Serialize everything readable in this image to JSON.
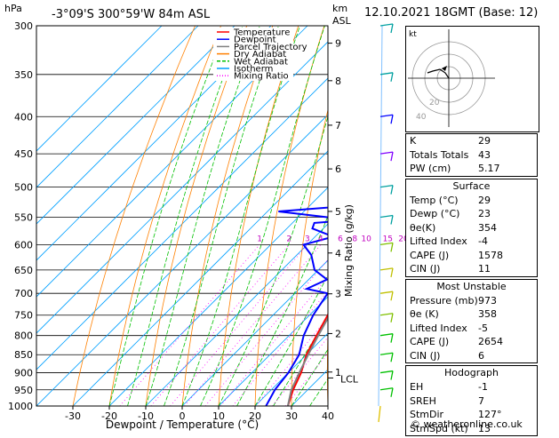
{
  "header": {
    "hpa_label": "hPa",
    "location": "-3°09'S  300°59'W  84m  ASL",
    "km_label": "km",
    "asl_label": "ASL",
    "datetime": "12.10.2021  18GMT  (Base: 12)"
  },
  "legend": [
    {
      "label": "Temperature",
      "color": "#ff0000"
    },
    {
      "label": "Dewpoint",
      "color": "#0000ff"
    },
    {
      "label": "Parcel Trajectory",
      "color": "#808080"
    },
    {
      "label": "Dry Adiabat",
      "color": "#ff8000"
    },
    {
      "label": "Wet Adiabat",
      "color": "#00c000"
    },
    {
      "label": "Isotherm",
      "color": "#00a0ff"
    },
    {
      "label": "Mixing Ratio",
      "color": "#ff00ff"
    }
  ],
  "chart_data": {
    "type": "line",
    "title": "",
    "xlabel": "Dewpoint / Temperature (°C)",
    "ylabel": "hPa",
    "right_axis_label": "Mixing Ratio (g/kg)",
    "xlim": [
      -40,
      40
    ],
    "ylim": [
      1000,
      300
    ],
    "x_ticks": [
      "-30",
      "-20",
      "-10",
      "0",
      "10",
      "20",
      "30",
      "40"
    ],
    "pressure_levels": [
      300,
      350,
      400,
      450,
      500,
      550,
      600,
      650,
      700,
      750,
      800,
      850,
      900,
      950,
      1000
    ],
    "km_ticks": [
      {
        "label": "9",
        "p": 317
      },
      {
        "label": "8",
        "p": 357
      },
      {
        "label": "7",
        "p": 411
      },
      {
        "label": "6",
        "p": 472
      },
      {
        "label": "5",
        "p": 540
      },
      {
        "label": "4",
        "p": 616
      },
      {
        "label": "3",
        "p": 701
      },
      {
        "label": "2",
        "p": 795
      },
      {
        "label": "1",
        "p": 898
      }
    ],
    "lcl_label": "LCL",
    "lcl_p": 915,
    "mixing_ratio_labels": [
      "1",
      "2",
      "3",
      "4",
      "6",
      "8",
      "10",
      "15",
      "20",
      "25"
    ],
    "mixing_ratio_values": [
      1,
      2,
      3,
      4,
      6,
      8,
      10,
      15,
      20,
      25
    ],
    "series": [
      {
        "name": "Temperature",
        "color": "#ff0000",
        "points": [
          [
            1000,
            29
          ],
          [
            950,
            26
          ],
          [
            900,
            23.5
          ],
          [
            850,
            20
          ],
          [
            800,
            17.5
          ],
          [
            750,
            15
          ],
          [
            700,
            12
          ],
          [
            650,
            9
          ],
          [
            600,
            5
          ],
          [
            550,
            1
          ],
          [
            500,
            -4
          ],
          [
            450,
            -10
          ],
          [
            430,
            -12
          ],
          [
            410,
            -16
          ],
          [
            400,
            -17
          ],
          [
            350,
            -24
          ],
          [
            330,
            -30
          ],
          [
            300,
            -37
          ]
        ]
      },
      {
        "name": "Dewpoint",
        "color": "#0000ff",
        "points": [
          [
            1000,
            23
          ],
          [
            950,
            21
          ],
          [
            900,
            20
          ],
          [
            850,
            18
          ],
          [
            800,
            14
          ],
          [
            750,
            11
          ],
          [
            700,
            9
          ],
          [
            690,
            2
          ],
          [
            670,
            5
          ],
          [
            650,
            -1
          ],
          [
            620,
            -6
          ],
          [
            600,
            -11
          ],
          [
            585,
            -5
          ],
          [
            570,
            -13
          ],
          [
            560,
            -14
          ],
          [
            555,
            -4
          ],
          [
            550,
            -12
          ],
          [
            540,
            -27
          ],
          [
            530,
            -8
          ],
          [
            500,
            -13
          ],
          [
            450,
            -18
          ],
          [
            430,
            -24
          ],
          [
            410,
            -20
          ],
          [
            400,
            -25
          ],
          [
            370,
            -33
          ],
          [
            350,
            -38
          ],
          [
            320,
            -40
          ],
          [
            300,
            -43
          ]
        ]
      },
      {
        "name": "Parcel Trajectory",
        "color": "#808080",
        "points": [
          [
            1000,
            29
          ],
          [
            950,
            25.5
          ],
          [
            900,
            23
          ],
          [
            850,
            20.5
          ],
          [
            800,
            18
          ],
          [
            750,
            15.5
          ],
          [
            700,
            13
          ],
          [
            650,
            10
          ],
          [
            600,
            6.5
          ],
          [
            550,
            3
          ],
          [
            500,
            -2
          ],
          [
            450,
            -7.5
          ],
          [
            400,
            -14
          ],
          [
            350,
            -22
          ],
          [
            300,
            -31
          ]
        ]
      }
    ]
  },
  "hodograph": {
    "label": "kt",
    "rings": [
      "20",
      "40"
    ]
  },
  "indices": [
    {
      "label": "K",
      "value": "29"
    },
    {
      "label": "Totals Totals",
      "value": "43"
    },
    {
      "label": "PW (cm)",
      "value": "5.17"
    }
  ],
  "surface": {
    "title": "Surface",
    "rows": [
      {
        "label": "Temp (°C)",
        "value": "29"
      },
      {
        "label": "Dewp (°C)",
        "value": "23"
      },
      {
        "label": "θe(K)",
        "value": "354"
      },
      {
        "label": "Lifted Index",
        "value": "-4"
      },
      {
        "label": "CAPE (J)",
        "value": "1578"
      },
      {
        "label": "CIN (J)",
        "value": "11"
      }
    ]
  },
  "most_unstable": {
    "title": "Most Unstable",
    "rows": [
      {
        "label": "Pressure (mb)",
        "value": "973"
      },
      {
        "label": "θe (K)",
        "value": "358"
      },
      {
        "label": "Lifted Index",
        "value": "-5"
      },
      {
        "label": "CAPE (J)",
        "value": "2654"
      },
      {
        "label": "CIN (J)",
        "value": "6"
      }
    ]
  },
  "hodograph_table": {
    "title": "Hodograph",
    "rows": [
      {
        "label": "EH",
        "value": "-1"
      },
      {
        "label": "SREH",
        "value": "7"
      },
      {
        "label": "StmDir",
        "value": "127°"
      },
      {
        "label": "StmSpd (kt)",
        "value": "13"
      }
    ]
  },
  "footer": "© weatheronline.co.uk"
}
